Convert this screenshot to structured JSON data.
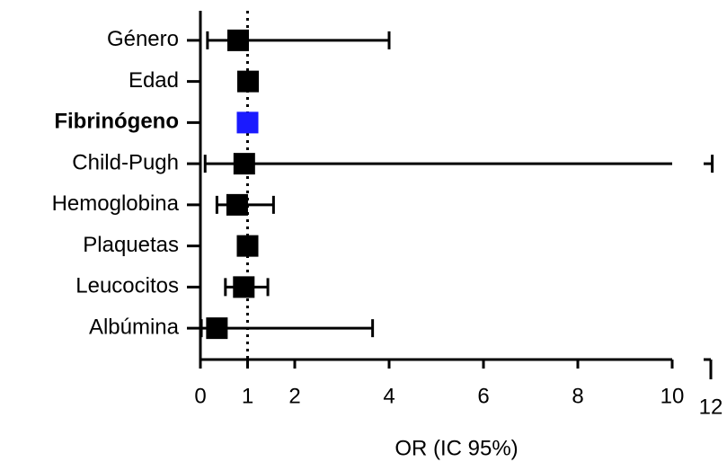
{
  "chart_data": {
    "type": "forest",
    "xlabel": "OR (IC 95%)",
    "categories": [
      "Género",
      "Edad",
      "Fibrinógeno",
      "Child-Pugh",
      "Hemoglobina",
      "Plaquetas",
      "Leucocitos",
      "Albúmina"
    ],
    "values": [
      0.8,
      1.01,
      1.0,
      0.93,
      0.78,
      1.0,
      0.92,
      0.35
    ],
    "lower": [
      0.15,
      0.98,
      0.98,
      0.1,
      0.35,
      0.98,
      0.53,
      0.02
    ],
    "upper": [
      4.0,
      1.04,
      1.02,
      12.1,
      1.55,
      1.02,
      1.43,
      3.65
    ],
    "colors": [
      "#000000",
      "#000000",
      "#1a1aff",
      "#000000",
      "#000000",
      "#000000",
      "#000000",
      "#000000"
    ],
    "bold_category": 2,
    "xlim": [
      0,
      12
    ],
    "xticks": [
      0,
      1,
      2,
      4,
      6,
      8,
      10,
      12
    ],
    "axis_break": [
      10,
      11.5
    ],
    "reference_line": 1
  }
}
